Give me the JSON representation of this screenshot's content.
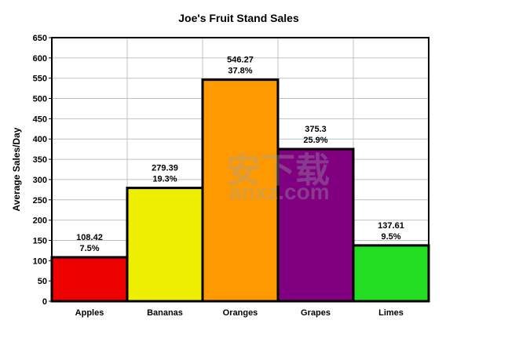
{
  "chart_data": {
    "type": "bar",
    "title": "Joe's Fruit Stand Sales",
    "xlabel": "",
    "ylabel": "Average Sales/Day",
    "ylim": [
      0,
      650
    ],
    "y_ticks": [
      0,
      50,
      100,
      150,
      200,
      250,
      300,
      350,
      400,
      450,
      500,
      550,
      600,
      650
    ],
    "grid": true,
    "categories": [
      "Apples",
      "Bananas",
      "Oranges",
      "Grapes",
      "Limes"
    ],
    "values": [
      108.42,
      279.39,
      546.27,
      375.3,
      137.61
    ],
    "value_labels": [
      "108.42",
      "279.39",
      "546.27",
      "375.3",
      "137.61"
    ],
    "percent_labels": [
      "7.5%",
      "19.3%",
      "37.8%",
      "25.9%",
      "9.5%"
    ],
    "colors": [
      "#ee0000",
      "#eeee00",
      "#ff9900",
      "#800080",
      "#22dd22"
    ]
  },
  "watermark": {
    "main": "安下载",
    "sub": "anxz.com"
  }
}
